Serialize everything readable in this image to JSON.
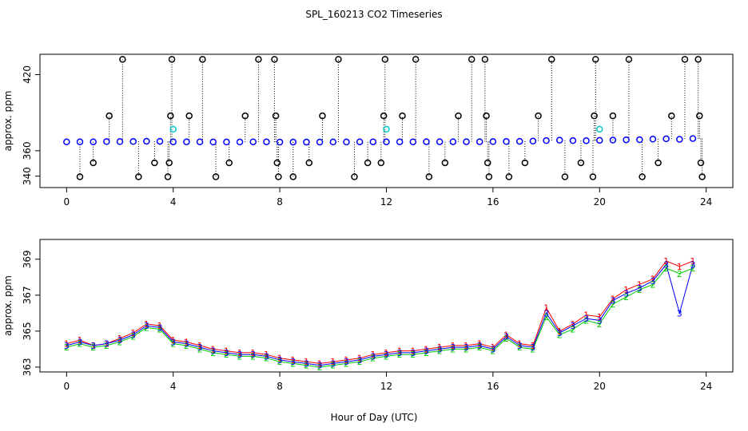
{
  "chart_data": [
    {
      "type": "scatter",
      "title": "SPL_160213  CO2 Timeseries",
      "y_label": "approx. ppm",
      "x": [
        0,
        0.5,
        1,
        1.5,
        2,
        2.5,
        3,
        3.5,
        4,
        4.5,
        5,
        5.5,
        6,
        6.5,
        7,
        7.5,
        8,
        8.5,
        9,
        9.5,
        10,
        10.5,
        11,
        11.5,
        12,
        12.5,
        13,
        13.5,
        14,
        14.5,
        15,
        15.5,
        16,
        16.5,
        17,
        17.5,
        18,
        18.5,
        19,
        19.5,
        20,
        20.5,
        21,
        21.5,
        22,
        22.5,
        23,
        23.5
      ],
      "values": [
        367,
        367,
        367,
        367.2,
        367.2,
        367.3,
        367.5,
        367.4,
        367,
        367,
        367,
        366.9,
        366.9,
        366.9,
        367,
        367,
        366.8,
        366.8,
        366.8,
        366.8,
        366.9,
        366.9,
        367,
        367,
        367,
        367,
        367,
        367.1,
        367.1,
        367.1,
        367.1,
        367.1,
        367.2,
        367.3,
        367.4,
        367.6,
        368.0,
        368.3,
        368.0,
        367.9,
        368.2,
        368.4,
        368.6,
        368.7,
        369.2,
        369.4,
        369.0,
        369.6
      ],
      "color": "#0000ff",
      "spikes": {
        "color": "#000000",
        "x": [
          0.5,
          1,
          1.6,
          2.1,
          2.7,
          3.3,
          3.8,
          3.85,
          3.9,
          3.95,
          4.6,
          5.1,
          5.6,
          6.1,
          6.7,
          7.2,
          7.8,
          7.85,
          7.9,
          7.95,
          8.5,
          9.1,
          9.6,
          10.2,
          10.8,
          11.3,
          11.8,
          11.9,
          11.95,
          12.6,
          13.1,
          13.6,
          14.2,
          14.7,
          15.2,
          15.7,
          15.75,
          15.8,
          15.85,
          16.6,
          17.2,
          17.7,
          18.2,
          18.7,
          19.3,
          19.75,
          19.8,
          19.85,
          20.5,
          21.1,
          21.6,
          22.2,
          22.7,
          23.2,
          23.7,
          23.75,
          23.8,
          23.85
        ],
        "values": [
          339.5,
          350.5,
          387.5,
          432,
          339.5,
          350.5,
          339.5,
          350.5,
          387.5,
          432,
          387.5,
          432,
          339.5,
          350.5,
          387.5,
          432,
          432,
          387.5,
          350.5,
          339.5,
          339.5,
          350.5,
          387.5,
          432,
          339.5,
          350.5,
          350.5,
          387.5,
          432,
          387.5,
          432,
          339.5,
          350.5,
          387.5,
          432,
          432,
          387.5,
          350.5,
          339.5,
          339.5,
          350.5,
          387.5,
          432,
          339.5,
          350.5,
          339.5,
          387.5,
          432,
          387.5,
          432,
          339.5,
          350.5,
          387.5,
          432,
          432,
          387.5,
          350.5,
          339.5
        ]
      },
      "highlights": {
        "color": "#00cccc",
        "x": [
          4,
          12,
          20
        ],
        "values": [
          377,
          377,
          377
        ]
      },
      "xlim": [
        -1,
        25
      ],
      "xticks": [
        0,
        4,
        8,
        12,
        16,
        20,
        24
      ],
      "ylim": [
        331,
        436
      ],
      "yticks": [
        340,
        360,
        420
      ]
    },
    {
      "type": "line",
      "y_label": "approx. ppm",
      "x_label": "Hour of Day (UTC)",
      "x": [
        0,
        0.5,
        1,
        1.5,
        2,
        2.5,
        3,
        3.5,
        4,
        4.5,
        5,
        5.5,
        6,
        6.5,
        7,
        7.5,
        8,
        8.5,
        9,
        9.5,
        10,
        10.5,
        11,
        11.5,
        12,
        12.5,
        13,
        13.5,
        14,
        14.5,
        15,
        15.5,
        16,
        16.5,
        17,
        17.5,
        18,
        18.5,
        19,
        19.5,
        20,
        20.5,
        21,
        21.5,
        22,
        22.5,
        23,
        23.5
      ],
      "series": [
        {
          "name": "1",
          "color": "#ff0000",
          "values": [
            364.3,
            364.5,
            364.2,
            364.3,
            364.6,
            364.9,
            365.4,
            365.3,
            364.5,
            364.4,
            364.2,
            364.0,
            363.9,
            363.8,
            363.8,
            363.7,
            363.5,
            363.4,
            363.3,
            363.2,
            363.3,
            363.4,
            363.5,
            363.7,
            363.8,
            363.9,
            363.9,
            364.0,
            364.1,
            364.2,
            364.2,
            364.3,
            364.1,
            364.8,
            364.3,
            364.2,
            366.3,
            365.0,
            365.4,
            365.9,
            365.8,
            366.8,
            367.3,
            367.6,
            367.9,
            368.9,
            368.6,
            368.9
          ]
        },
        {
          "name": "2",
          "color": "#00cc00",
          "values": [
            364.1,
            364.3,
            364.1,
            364.2,
            364.4,
            364.7,
            365.2,
            365.1,
            364.3,
            364.2,
            364.0,
            363.8,
            363.7,
            363.6,
            363.6,
            363.5,
            363.3,
            363.2,
            363.1,
            363.0,
            363.1,
            363.2,
            363.3,
            363.5,
            363.6,
            363.7,
            363.7,
            363.8,
            363.9,
            364.0,
            364.0,
            364.1,
            363.9,
            364.6,
            364.1,
            364.0,
            365.8,
            364.8,
            365.1,
            365.6,
            365.4,
            366.5,
            366.9,
            367.3,
            367.6,
            368.5,
            368.2,
            368.5
          ]
        },
        {
          "name": "3",
          "color": "#0000ff",
          "values": [
            364.2,
            364.4,
            364.2,
            364.3,
            364.5,
            364.8,
            365.3,
            365.2,
            364.4,
            364.3,
            364.1,
            363.9,
            363.8,
            363.7,
            363.7,
            363.6,
            363.4,
            363.3,
            363.2,
            363.1,
            363.2,
            363.3,
            363.4,
            363.6,
            363.7,
            363.8,
            363.8,
            363.9,
            364.0,
            364.1,
            364.1,
            364.2,
            364.0,
            364.7,
            364.2,
            364.1,
            366.0,
            364.9,
            365.3,
            365.7,
            365.6,
            366.7,
            367.1,
            367.4,
            367.8,
            368.7,
            366.0,
            368.7
          ]
        }
      ],
      "xlim": [
        -1,
        25
      ],
      "xticks": [
        0,
        4,
        8,
        12,
        16,
        20,
        24
      ],
      "ylim": [
        362.73,
        370.1
      ],
      "yticks": [
        363,
        365,
        367,
        369
      ]
    }
  ]
}
